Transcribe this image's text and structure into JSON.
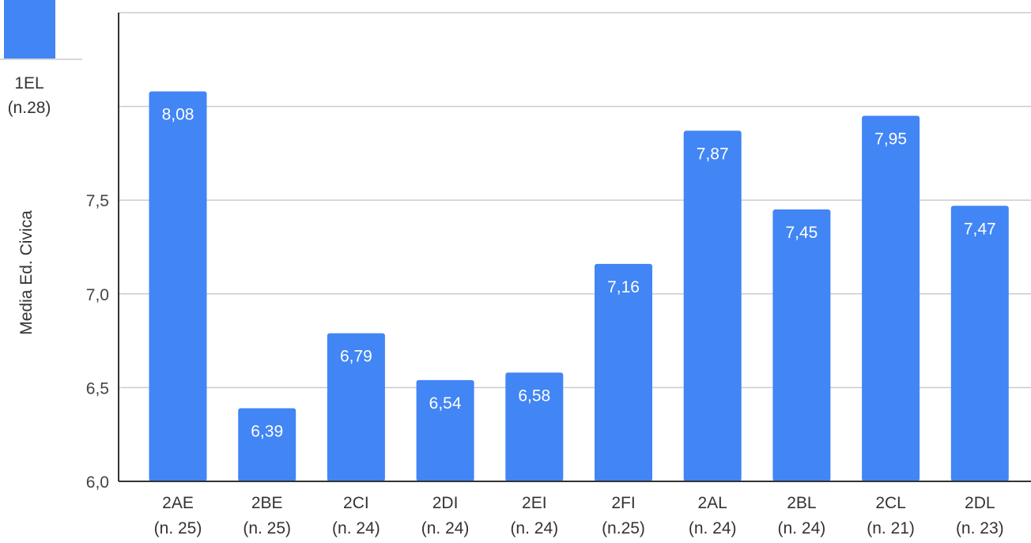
{
  "chart_data": {
    "type": "bar",
    "title": "",
    "xlabel": "",
    "ylabel": "Media Ed. Civica",
    "ylim": [
      6.0,
      8.5
    ],
    "yticks": [
      6.0,
      6.5,
      7.0,
      7.5
    ],
    "ytick_labels": [
      "6,0",
      "6,5",
      "7,0",
      "7,5"
    ],
    "grid": true,
    "bar_color": "#4285f4",
    "categories": [
      {
        "name": "1EL",
        "n": "(n.28)",
        "value": null,
        "label": ""
      },
      {
        "name": "2AE",
        "n": "(n. 25)",
        "value": 8.08,
        "label": "8,08"
      },
      {
        "name": "2BE",
        "n": "(n. 25)",
        "value": 6.39,
        "label": "6,39"
      },
      {
        "name": "2CI",
        "n": "(n. 24)",
        "value": 6.79,
        "label": "6,79"
      },
      {
        "name": "2DI",
        "n": "(n. 24)",
        "value": 6.54,
        "label": "6,54"
      },
      {
        "name": "2EI",
        "n": "(n. 24)",
        "value": 6.58,
        "label": "6,58"
      },
      {
        "name": "2FI",
        "n": "(n.25)",
        "value": 7.16,
        "label": "7,16"
      },
      {
        "name": "2AL",
        "n": "(n. 24)",
        "value": 7.87,
        "label": "7,87"
      },
      {
        "name": "2BL",
        "n": "(n. 24)",
        "value": 7.45,
        "label": "7,45"
      },
      {
        "name": "2CL",
        "n": "(n. 21)",
        "value": 7.95,
        "label": "7,95"
      },
      {
        "name": "2DL",
        "n": "(n. 23)",
        "value": 7.47,
        "label": "7,47"
      }
    ]
  }
}
